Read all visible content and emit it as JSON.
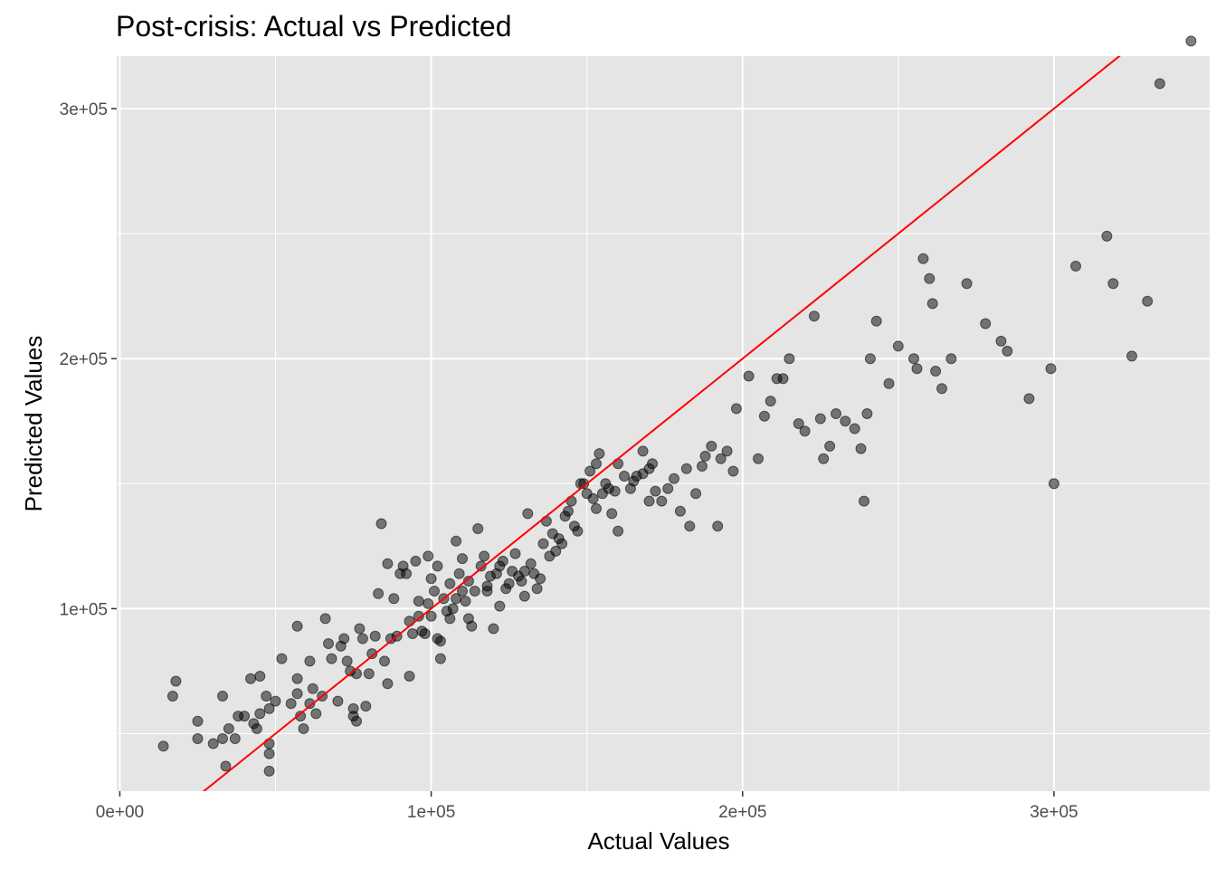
{
  "chart_data": {
    "type": "scatter",
    "title": "Post-crisis: Actual vs Predicted",
    "xlabel": "Actual Values",
    "ylabel": "Predicted Values",
    "xlim": [
      -1000,
      350000
    ],
    "ylim": [
      27000,
      321000
    ],
    "x_ticks": [
      {
        "value": 0,
        "label": "0e+00"
      },
      {
        "value": 100000,
        "label": "1e+05"
      },
      {
        "value": 200000,
        "label": "2e+05"
      },
      {
        "value": 300000,
        "label": "3e+05"
      }
    ],
    "y_ticks": [
      {
        "value": 100000,
        "label": "1e+05"
      },
      {
        "value": 200000,
        "label": "2e+05"
      },
      {
        "value": 300000,
        "label": "3e+05"
      }
    ],
    "x_minor_ticks": [
      50000,
      150000,
      250000
    ],
    "y_minor_ticks": [
      50000,
      150000,
      250000
    ],
    "grid": true,
    "panel_background": "#e5e5e5",
    "grid_color": "#ffffff",
    "point_color": "#000000",
    "point_opacity": 0.5,
    "reference_line": {
      "slope": 1,
      "intercept": 0,
      "color": "#ff0000"
    },
    "points": [
      [
        14000,
        45000
      ],
      [
        17000,
        65000
      ],
      [
        18000,
        71000
      ],
      [
        25000,
        55000
      ],
      [
        25000,
        48000
      ],
      [
        30000,
        46000
      ],
      [
        33000,
        48000
      ],
      [
        33000,
        65000
      ],
      [
        34000,
        37000
      ],
      [
        35000,
        52000
      ],
      [
        37000,
        48000
      ],
      [
        38000,
        57000
      ],
      [
        40000,
        57000
      ],
      [
        42000,
        72000
      ],
      [
        43000,
        54000
      ],
      [
        44000,
        52000
      ],
      [
        45000,
        58000
      ],
      [
        45000,
        73000
      ],
      [
        47000,
        65000
      ],
      [
        48000,
        46000
      ],
      [
        48000,
        42000
      ],
      [
        48000,
        35000
      ],
      [
        48000,
        60000
      ],
      [
        50000,
        63000
      ],
      [
        52000,
        80000
      ],
      [
        55000,
        62000
      ],
      [
        57000,
        66000
      ],
      [
        57000,
        93000
      ],
      [
        57000,
        72000
      ],
      [
        58000,
        57000
      ],
      [
        59000,
        52000
      ],
      [
        61000,
        62000
      ],
      [
        61000,
        79000
      ],
      [
        62000,
        68000
      ],
      [
        63000,
        58000
      ],
      [
        65000,
        65000
      ],
      [
        66000,
        96000
      ],
      [
        67000,
        86000
      ],
      [
        68000,
        80000
      ],
      [
        70000,
        63000
      ],
      [
        71000,
        85000
      ],
      [
        72000,
        88000
      ],
      [
        73000,
        79000
      ],
      [
        74000,
        75000
      ],
      [
        75000,
        57000
      ],
      [
        75000,
        60000
      ],
      [
        76000,
        55000
      ],
      [
        76000,
        74000
      ],
      [
        77000,
        92000
      ],
      [
        78000,
        88000
      ],
      [
        79000,
        61000
      ],
      [
        80000,
        74000
      ],
      [
        81000,
        82000
      ],
      [
        82000,
        89000
      ],
      [
        83000,
        106000
      ],
      [
        84000,
        134000
      ],
      [
        85000,
        79000
      ],
      [
        86000,
        118000
      ],
      [
        86000,
        70000
      ],
      [
        87000,
        88000
      ],
      [
        88000,
        104000
      ],
      [
        89000,
        89000
      ],
      [
        90000,
        114000
      ],
      [
        91000,
        117000
      ],
      [
        92000,
        114000
      ],
      [
        93000,
        73000
      ],
      [
        93000,
        95000
      ],
      [
        94000,
        90000
      ],
      [
        95000,
        119000
      ],
      [
        96000,
        97000
      ],
      [
        96000,
        103000
      ],
      [
        97000,
        91000
      ],
      [
        98000,
        90000
      ],
      [
        99000,
        102000
      ],
      [
        99000,
        121000
      ],
      [
        100000,
        97000
      ],
      [
        100000,
        112000
      ],
      [
        101000,
        107000
      ],
      [
        102000,
        88000
      ],
      [
        102000,
        117000
      ],
      [
        103000,
        80000
      ],
      [
        103000,
        87000
      ],
      [
        104000,
        104000
      ],
      [
        105000,
        99000
      ],
      [
        106000,
        110000
      ],
      [
        106000,
        96000
      ],
      [
        107000,
        100000
      ],
      [
        108000,
        127000
      ],
      [
        108000,
        104000
      ],
      [
        109000,
        114000
      ],
      [
        110000,
        107000
      ],
      [
        110000,
        120000
      ],
      [
        111000,
        103000
      ],
      [
        112000,
        111000
      ],
      [
        112000,
        96000
      ],
      [
        113000,
        93000
      ],
      [
        114000,
        107000
      ],
      [
        115000,
        132000
      ],
      [
        116000,
        117000
      ],
      [
        117000,
        121000
      ],
      [
        118000,
        109000
      ],
      [
        118000,
        107000
      ],
      [
        119000,
        113000
      ],
      [
        120000,
        92000
      ],
      [
        121000,
        114000
      ],
      [
        122000,
        117000
      ],
      [
        122000,
        101000
      ],
      [
        123000,
        119000
      ],
      [
        124000,
        108000
      ],
      [
        125000,
        110000
      ],
      [
        126000,
        115000
      ],
      [
        127000,
        122000
      ],
      [
        128000,
        113000
      ],
      [
        129000,
        111000
      ],
      [
        130000,
        115000
      ],
      [
        130000,
        105000
      ],
      [
        131000,
        138000
      ],
      [
        132000,
        118000
      ],
      [
        133000,
        114000
      ],
      [
        134000,
        108000
      ],
      [
        135000,
        112000
      ],
      [
        136000,
        126000
      ],
      [
        137000,
        135000
      ],
      [
        138000,
        121000
      ],
      [
        139000,
        130000
      ],
      [
        140000,
        123000
      ],
      [
        141000,
        128000
      ],
      [
        142000,
        126000
      ],
      [
        143000,
        137000
      ],
      [
        144000,
        139000
      ],
      [
        145000,
        143000
      ],
      [
        146000,
        133000
      ],
      [
        147000,
        131000
      ],
      [
        148000,
        150000
      ],
      [
        149000,
        150000
      ],
      [
        150000,
        146000
      ],
      [
        151000,
        155000
      ],
      [
        152000,
        144000
      ],
      [
        153000,
        140000
      ],
      [
        153000,
        158000
      ],
      [
        154000,
        162000
      ],
      [
        155000,
        146000
      ],
      [
        156000,
        150000
      ],
      [
        157000,
        148000
      ],
      [
        158000,
        138000
      ],
      [
        159000,
        147000
      ],
      [
        160000,
        131000
      ],
      [
        160000,
        158000
      ],
      [
        162000,
        153000
      ],
      [
        164000,
        148000
      ],
      [
        165000,
        151000
      ],
      [
        166000,
        153000
      ],
      [
        168000,
        163000
      ],
      [
        168000,
        154000
      ],
      [
        170000,
        156000
      ],
      [
        170000,
        143000
      ],
      [
        171000,
        158000
      ],
      [
        172000,
        147000
      ],
      [
        174000,
        143000
      ],
      [
        176000,
        148000
      ],
      [
        178000,
        152000
      ],
      [
        180000,
        139000
      ],
      [
        182000,
        156000
      ],
      [
        183000,
        133000
      ],
      [
        185000,
        146000
      ],
      [
        187000,
        157000
      ],
      [
        188000,
        161000
      ],
      [
        190000,
        165000
      ],
      [
        192000,
        133000
      ],
      [
        193000,
        160000
      ],
      [
        195000,
        163000
      ],
      [
        197000,
        155000
      ],
      [
        198000,
        180000
      ],
      [
        202000,
        193000
      ],
      [
        205000,
        160000
      ],
      [
        207000,
        177000
      ],
      [
        209000,
        183000
      ],
      [
        211000,
        192000
      ],
      [
        213000,
        192000
      ],
      [
        215000,
        200000
      ],
      [
        218000,
        174000
      ],
      [
        220000,
        171000
      ],
      [
        223000,
        217000
      ],
      [
        225000,
        176000
      ],
      [
        226000,
        160000
      ],
      [
        228000,
        165000
      ],
      [
        230000,
        178000
      ],
      [
        233000,
        175000
      ],
      [
        236000,
        172000
      ],
      [
        238000,
        164000
      ],
      [
        239000,
        143000
      ],
      [
        240000,
        178000
      ],
      [
        241000,
        200000
      ],
      [
        243000,
        215000
      ],
      [
        247000,
        190000
      ],
      [
        250000,
        205000
      ],
      [
        255000,
        200000
      ],
      [
        256000,
        196000
      ],
      [
        258000,
        240000
      ],
      [
        260000,
        232000
      ],
      [
        261000,
        222000
      ],
      [
        262000,
        195000
      ],
      [
        264000,
        188000
      ],
      [
        267000,
        200000
      ],
      [
        272000,
        230000
      ],
      [
        278000,
        214000
      ],
      [
        283000,
        207000
      ],
      [
        285000,
        203000
      ],
      [
        292000,
        184000
      ],
      [
        299000,
        196000
      ],
      [
        300000,
        150000
      ],
      [
        307000,
        237000
      ],
      [
        317000,
        249000
      ],
      [
        319000,
        230000
      ],
      [
        325000,
        201000
      ],
      [
        330000,
        223000
      ],
      [
        334000,
        310000
      ],
      [
        344000,
        327000
      ]
    ]
  }
}
